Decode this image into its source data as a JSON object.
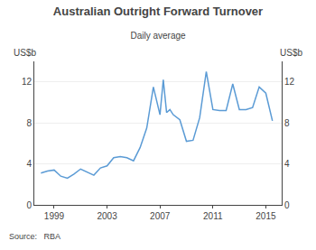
{
  "chart_data": {
    "type": "line",
    "title": "Australian Outright Forward Turnover",
    "subtitle": "Daily average",
    "ylabel": "US$b",
    "y2label": "US$b",
    "annotations": [
      "Source:   RBA"
    ],
    "color": "#5b9bd5",
    "x": [
      1998.0,
      1998.5,
      1999.0,
      1999.5,
      2000.0,
      2000.5,
      2001.0,
      2001.5,
      2002.0,
      2002.5,
      2003.0,
      2003.5,
      2004.0,
      2004.5,
      2005.0,
      2005.5,
      2006.0,
      2006.5,
      2007.0,
      2007.25,
      2007.5,
      2007.75,
      2008.0,
      2008.5,
      2009.0,
      2009.5,
      2010.0,
      2010.5,
      2011.0,
      2011.5,
      2012.0,
      2012.5,
      2013.0,
      2013.5,
      2014.0,
      2014.5,
      2015.0,
      2015.5
    ],
    "values": [
      3.1,
      3.3,
      3.4,
      2.8,
      2.6,
      3.0,
      3.5,
      3.2,
      2.9,
      3.6,
      3.8,
      4.6,
      4.7,
      4.6,
      4.3,
      5.6,
      7.5,
      11.5,
      8.8,
      12.2,
      9.0,
      9.3,
      8.8,
      8.3,
      6.2,
      6.3,
      8.5,
      13.0,
      9.3,
      9.2,
      9.2,
      11.8,
      9.3,
      9.3,
      9.5,
      11.5,
      10.9,
      8.2
    ],
    "xlim": [
      1997.5,
      2016.2
    ],
    "xticks": [
      1999,
      2003,
      2007,
      2011,
      2015
    ],
    "ylim": [
      0,
      14
    ],
    "yticks": [
      0,
      4,
      8,
      12
    ],
    "y2lim": [
      0,
      14
    ],
    "y2ticks": [
      0,
      4,
      8,
      12
    ],
    "grid": true
  }
}
